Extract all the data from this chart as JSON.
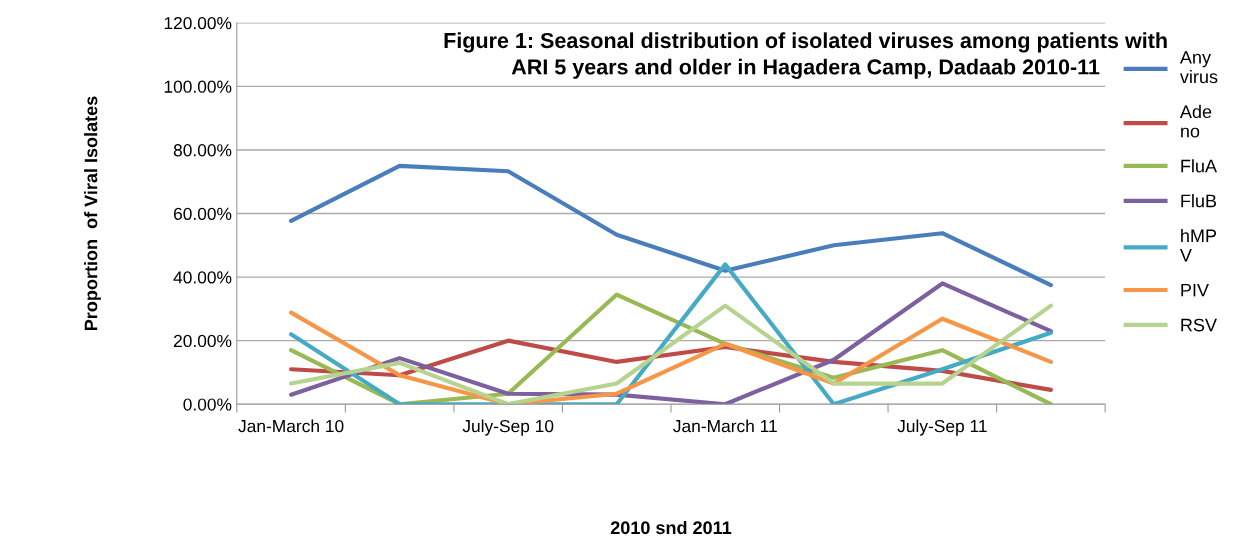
{
  "chart_data": {
    "type": "line",
    "title": "Figure 1: Seasonal distribution of isolated viruses among patients with\nARI 5 years and older in Hagadera Camp, Dadaab 2010-11",
    "xlabel": "2010 snd 2011",
    "ylabel": "Proportion  of Viral Isolates",
    "categories": [
      "Jan-March 10",
      null,
      "July-Sep 10",
      null,
      "Jan-March 11",
      null,
      "July-Sep 11",
      null
    ],
    "series": [
      {
        "name": "Any\nvirus",
        "color": "#4a7ebb",
        "values": [
          57.7,
          75,
          73.3,
          53.3,
          42,
          50,
          53.8,
          37.5
        ]
      },
      {
        "name": "Ade\nno",
        "color": "#be4b48",
        "values": [
          11,
          9.1,
          20,
          13.3,
          18,
          13.3,
          10.5,
          4.5
        ]
      },
      {
        "name": "FluA",
        "color": "#98b954",
        "values": [
          17,
          0,
          3.3,
          34.5,
          19,
          8.3,
          17,
          0
        ]
      },
      {
        "name": "FluB",
        "color": "#7d60a0",
        "values": [
          3,
          14.5,
          3.3,
          3,
          0,
          14,
          38,
          23
        ]
      },
      {
        "name": "hMP\nV",
        "color": "#46aac5",
        "values": [
          22,
          0,
          0,
          0,
          44,
          0,
          11,
          22.5
        ]
      },
      {
        "name": "PIV",
        "color": "#f79646",
        "values": [
          28.8,
          9.1,
          0,
          3.3,
          19,
          6.5,
          26.9,
          13.3
        ]
      },
      {
        "name": "RSV",
        "color": "#b6d38f",
        "values": [
          6.5,
          13,
          0,
          6.5,
          31,
          6.5,
          6.5,
          31
        ]
      }
    ],
    "ylim": [
      0,
      120
    ],
    "yticks": [
      {
        "value": 0,
        "label": "0.00%"
      },
      {
        "value": 20,
        "label": "20.00%"
      },
      {
        "value": 40,
        "label": "40.00%"
      },
      {
        "value": 60,
        "label": "60.00%"
      },
      {
        "value": 80,
        "label": "80.00%"
      },
      {
        "value": 100,
        "label": "100.00%"
      },
      {
        "value": 120,
        "label": "120.00%"
      }
    ],
    "grid": "y",
    "legend": "right",
    "marker": "none",
    "line_style": "solid"
  }
}
